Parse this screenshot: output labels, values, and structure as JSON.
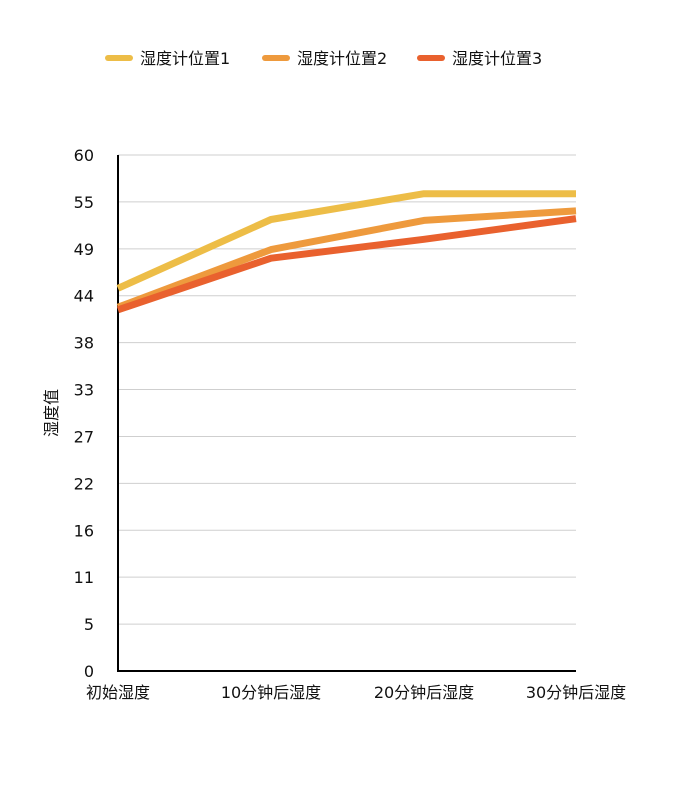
{
  "chart_data": {
    "type": "line",
    "title": "",
    "xlabel": "",
    "ylabel": "湿度值",
    "categories": [
      "初始湿度",
      "10分钟后湿度",
      "20分钟后湿度",
      "30分钟后湿度"
    ],
    "y_ticks": [
      "0",
      "5",
      "11",
      "16",
      "22",
      "27",
      "33",
      "38",
      "44",
      "49",
      "55",
      "60"
    ],
    "ylim": [
      0,
      60
    ],
    "grid": true,
    "legend_position": "top",
    "series": [
      {
        "name": "湿度计位置1",
        "color": "#EDBD47",
        "values": [
          44.5,
          52.5,
          55.5,
          55.5
        ]
      },
      {
        "name": "湿度计位置2",
        "color": "#EE9A3D",
        "values": [
          42.3,
          49.0,
          52.4,
          53.5
        ]
      },
      {
        "name": "湿度计位置3",
        "color": "#E9612E",
        "values": [
          42.0,
          48.0,
          50.2,
          52.6
        ]
      }
    ]
  }
}
